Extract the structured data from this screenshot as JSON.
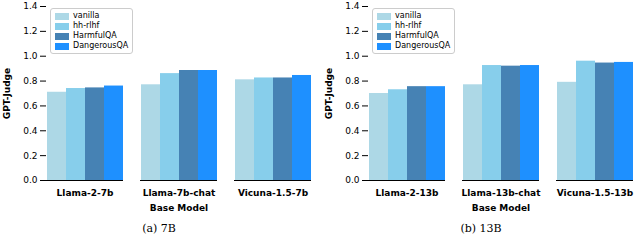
{
  "chart_data": [
    {
      "type": "bar",
      "caption": "(a) 7B",
      "xlabel": "Base Model",
      "ylabel": "GPT-Judge",
      "categories": [
        "Llama-2-7b",
        "Llama-7b-chat",
        "Vicuna-1.5-7b"
      ],
      "series": [
        {
          "name": "vanilla",
          "color": "#add8e6",
          "values": [
            0.71,
            0.77,
            0.81
          ]
        },
        {
          "name": "hh-rlhf",
          "color": "#87ceeb",
          "values": [
            0.74,
            0.86,
            0.825
          ]
        },
        {
          "name": "HarmfulQA",
          "color": "#4682b4",
          "values": [
            0.745,
            0.885,
            0.825
          ]
        },
        {
          "name": "DangerousQA",
          "color": "#1e90ff",
          "values": [
            0.76,
            0.885,
            0.845
          ]
        }
      ],
      "ylim": [
        0,
        1.4
      ],
      "yticks": [
        {
          "value": 0,
          "label": "0.0"
        },
        {
          "value": 0.2,
          "label": "0.2"
        },
        {
          "value": 0.4,
          "label": "0.4"
        },
        {
          "value": 0.6,
          "label": "0.6"
        },
        {
          "value": 0.8,
          "label": "0.8"
        },
        {
          "value": 1,
          "label": "1.0"
        },
        {
          "value": 1.2,
          "label": "1.2"
        },
        {
          "value": 1.4,
          "label": "1.4"
        }
      ],
      "legend": "upper left",
      "grid": false
    },
    {
      "type": "bar",
      "caption": "(b) 13B",
      "xlabel": "Base Model",
      "ylabel": "GPT-Judge",
      "categories": [
        "Llama-2-13b",
        "Llama-13b-chat",
        "Vicuna-1.5-13b"
      ],
      "series": [
        {
          "name": "vanilla",
          "color": "#add8e6",
          "values": [
            0.7,
            0.77,
            0.79
          ]
        },
        {
          "name": "hh-rlhf",
          "color": "#87ceeb",
          "values": [
            0.73,
            0.925,
            0.96
          ]
        },
        {
          "name": "HarmfulQA",
          "color": "#4682b4",
          "values": [
            0.755,
            0.92,
            0.945
          ]
        },
        {
          "name": "DangerousQA",
          "color": "#1e90ff",
          "values": [
            0.755,
            0.925,
            0.95
          ]
        }
      ],
      "ylim": [
        0,
        1.4
      ],
      "yticks": [
        {
          "value": 0,
          "label": "0.0"
        },
        {
          "value": 0.2,
          "label": "0.2"
        },
        {
          "value": 0.4,
          "label": "0.4"
        },
        {
          "value": 0.6,
          "label": "0.6"
        },
        {
          "value": 0.8,
          "label": "0.8"
        },
        {
          "value": 1,
          "label": "1.0"
        },
        {
          "value": 1.2,
          "label": "1.2"
        },
        {
          "value": 1.4,
          "label": "1.4"
        }
      ],
      "legend": "upper left",
      "grid": false
    }
  ]
}
